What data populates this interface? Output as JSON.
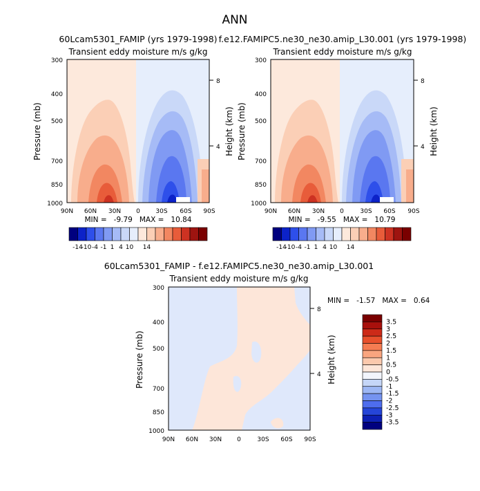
{
  "page_title": "ANN",
  "panels": [
    {
      "case_title": "60Lcam5301_FAMIP (yrs 1979-1998)",
      "subtitle": "Transient eddy moisture m/s g/kg",
      "ylabel": "Pressure (mb)",
      "ylabel_right": "Height (km)",
      "stats": "MIN =   -9.79   MAX =   10.84"
    },
    {
      "case_title": "f.e12.FAMIPC5.ne30_ne30.amip_L30.001 (yrs 1979-1998)",
      "subtitle": "Transient eddy moisture m/s g/kg",
      "ylabel": "Pressure (mb)",
      "ylabel_right": "Height (km)",
      "stats": "MIN =   -9.55   MAX =   10.79"
    },
    {
      "case_title": "60Lcam5301_FAMIP - f.e12.FAMIPC5.ne30_ne30.amip_L30.001",
      "subtitle": "Transient eddy moisture m/s g/kg",
      "ylabel": "Pressure (mb)",
      "ylabel_right": "Height (km)",
      "stats": "MIN =   -1.57   MAX =   0.64"
    }
  ],
  "chart_data": [
    {
      "type": "contour",
      "x_ticks": [
        "90N",
        "60N",
        "30N",
        "0",
        "30S",
        "60S",
        "90S"
      ],
      "y_ticks": [
        "300",
        "400",
        "500",
        "700",
        "850",
        "1000"
      ],
      "y_right_ticks": [
        "8",
        "4"
      ],
      "colorbar_labels": [
        "-14",
        "-10",
        "-4",
        "-1",
        "1",
        "4",
        "10",
        "14"
      ],
      "colorbar_colors": [
        "#00007f",
        "#0c22c8",
        "#2e4fea",
        "#5a77f0",
        "#809af3",
        "#a6bbf6",
        "#c9d8f8",
        "#e6eefc",
        "#fde9dc",
        "#fbcfb6",
        "#f8ad8c",
        "#f28761",
        "#e85c3a",
        "#cd3222",
        "#9e1410",
        "#7a0000"
      ],
      "min": -9.79,
      "max": 10.84
    },
    {
      "type": "contour",
      "x_ticks": [
        "90N",
        "60N",
        "30N",
        "0",
        "30S",
        "60S",
        "90S"
      ],
      "y_ticks": [
        "300",
        "400",
        "500",
        "700",
        "850",
        "1000"
      ],
      "y_right_ticks": [
        "8",
        "4"
      ],
      "colorbar_labels": [
        "-14",
        "-10",
        "-4",
        "-1",
        "1",
        "4",
        "10",
        "14"
      ],
      "colorbar_colors": [
        "#00007f",
        "#0c22c8",
        "#2e4fea",
        "#5a77f0",
        "#809af3",
        "#a6bbf6",
        "#c9d8f8",
        "#e6eefc",
        "#fde9dc",
        "#fbcfb6",
        "#f8ad8c",
        "#f28761",
        "#e85c3a",
        "#cd3222",
        "#9e1410",
        "#7a0000"
      ],
      "min": -9.55,
      "max": 10.79
    },
    {
      "type": "contour",
      "x_ticks": [
        "90N",
        "60N",
        "30N",
        "0",
        "30S",
        "60S",
        "90S"
      ],
      "y_ticks": [
        "300",
        "400",
        "500",
        "700",
        "850",
        "1000"
      ],
      "y_right_ticks": [
        "8",
        "4"
      ],
      "colorbar_labels": [
        "3.5",
        "3",
        "2.5",
        "2",
        "1.5",
        "1",
        "0.5",
        "0",
        "-0.5",
        "-1",
        "-1.5",
        "-2",
        "-2.5",
        "-3",
        "-3.5"
      ],
      "colorbar_colors": [
        "#7a0000",
        "#a8100c",
        "#cd2a18",
        "#e8502c",
        "#f57c52",
        "#f9a57f",
        "#fbc9ad",
        "#fde6d9",
        "#f2f5fc",
        "#c5d6f7",
        "#9db7f4",
        "#7593f0",
        "#4e6ded",
        "#2545d8",
        "#0d20b4",
        "#00007f"
      ],
      "min": -1.57,
      "max": 0.64
    }
  ]
}
